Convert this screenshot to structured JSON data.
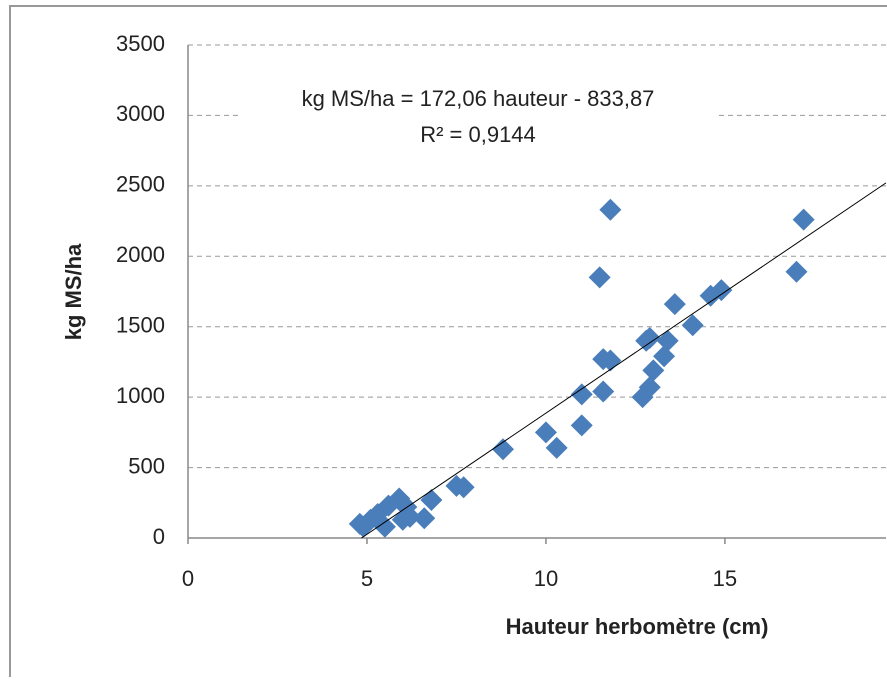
{
  "chart_data": {
    "type": "scatter",
    "xlabel": "Hauteur herbomètre (cm)",
    "ylabel": "kg MS/ha",
    "x": [
      4.8,
      4.9,
      5.1,
      5.3,
      5.5,
      5.6,
      5.9,
      6.0,
      6.1,
      6.2,
      6.6,
      6.8,
      7.5,
      7.7,
      8.8,
      10.0,
      10.3,
      11.0,
      11.0,
      11.5,
      11.6,
      11.6,
      11.8,
      11.8,
      12.7,
      12.8,
      12.9,
      13.0,
      12.9,
      13.3,
      13.4,
      13.6,
      14.1,
      14.6,
      14.9,
      17.0,
      17.2
    ],
    "y": [
      100,
      80,
      130,
      170,
      80,
      230,
      280,
      130,
      220,
      150,
      140,
      270,
      370,
      360,
      630,
      750,
      640,
      800,
      1020,
      1850,
      1040,
      1270,
      2330,
      1260,
      1000,
      1400,
      1420,
      1190,
      1070,
      1290,
      1400,
      1660,
      1510,
      1720,
      1760,
      1890,
      2260
    ],
    "color": "#4a7ebb",
    "xlim": [
      0,
      19.5
    ],
    "xticks": [
      0,
      5,
      10,
      15
    ],
    "ylim": [
      0,
      3500
    ],
    "yticks": [
      0,
      500,
      1000,
      1500,
      2000,
      2500,
      3000,
      3500
    ],
    "grid": true,
    "trendline": {
      "slope": 172.06,
      "intercept": -833.87,
      "color": "#000000",
      "equation": "kg MS/ha = 172,06 hauteur - 833,87",
      "r2_label": "R² = 0,9144"
    }
  }
}
